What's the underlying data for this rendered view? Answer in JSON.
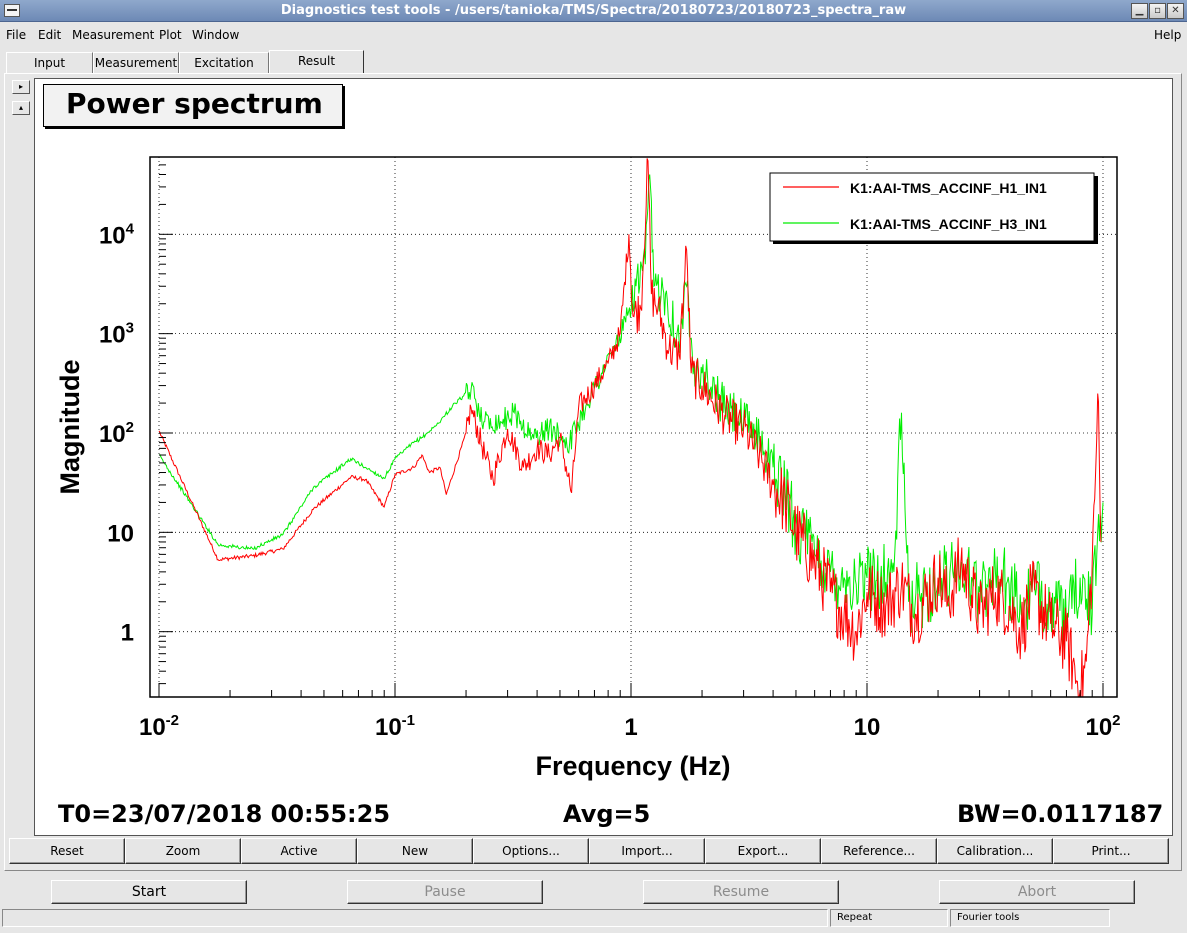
{
  "window": {
    "title": "Diagnostics test tools - /users/tanioka/TMS/Spectra/20180723/20180723_spectra_raw",
    "minimize_glyph": "▁",
    "maximize_glyph": "▫",
    "close_glyph": "✕"
  },
  "menu": [
    "File",
    "Edit",
    "Measurement",
    "Plot",
    "Window"
  ],
  "menu_help": "Help",
  "tabs": [
    "Input",
    "Measurement",
    "Excitation",
    "Result"
  ],
  "active_tab": "Result",
  "side_buttons": {
    "right_glyph": "▸",
    "up_glyph": "▴"
  },
  "plot_title": "Power spectrum",
  "footer": {
    "t0": "T0=23/07/2018 00:55:25",
    "avg": "Avg=5",
    "bw": "BW=0.0117187"
  },
  "graph_buttons": [
    "Reset",
    "Zoom",
    "Active",
    "New",
    "Options...",
    "Import...",
    "Export...",
    "Reference...",
    "Calibration...",
    "Print..."
  ],
  "controls": [
    {
      "label": "Start",
      "enabled": true
    },
    {
      "label": "Pause",
      "enabled": false
    },
    {
      "label": "Resume",
      "enabled": false
    },
    {
      "label": "Abort",
      "enabled": false
    }
  ],
  "status": {
    "repeat": "Repeat",
    "mode": "Fourier tools"
  },
  "chart_data": {
    "type": "line",
    "xscale": "log",
    "yscale": "log",
    "xlim": [
      0.01,
      100
    ],
    "ylim": [
      0.22,
      60000
    ],
    "xlabel": "Frequency (Hz)",
    "ylabel": "Magnitude",
    "grid": true,
    "legend_position": "top-right",
    "x_ticks": [
      {
        "value": 0.01,
        "base": "10",
        "exp": "-2"
      },
      {
        "value": 0.1,
        "base": "10",
        "exp": "-1"
      },
      {
        "value": 1,
        "base": "1",
        "exp": ""
      },
      {
        "value": 10,
        "base": "10",
        "exp": ""
      },
      {
        "value": 100,
        "base": "10",
        "exp": "2"
      }
    ],
    "y_ticks": [
      {
        "value": 1,
        "base": "1",
        "exp": ""
      },
      {
        "value": 10,
        "base": "10",
        "exp": ""
      },
      {
        "value": 100,
        "base": "10",
        "exp": "2"
      },
      {
        "value": 1000,
        "base": "10",
        "exp": "3"
      },
      {
        "value": 10000,
        "base": "10",
        "exp": "4"
      }
    ],
    "series": [
      {
        "name": "K1:AAI-TMS_ACCINF_H1_IN1",
        "color": "#ff0000",
        "x": [
          0.01,
          0.0178,
          0.025,
          0.0335,
          0.045,
          0.065,
          0.075,
          0.09,
          0.1,
          0.12,
          0.13,
          0.14,
          0.155,
          0.165,
          0.2,
          0.21,
          0.24,
          0.26,
          0.3,
          0.35,
          0.4,
          0.45,
          0.5,
          0.56,
          0.6,
          0.7,
          0.8,
          0.9,
          0.98,
          1.02,
          1.1,
          1.18,
          1.22,
          1.3,
          1.45,
          1.6,
          1.72,
          1.8,
          2.0,
          2.5,
          3.0,
          3.5,
          4.0,
          4.5,
          5.0,
          6.0,
          7.0,
          8.0,
          9.0,
          10.0,
          12.0,
          14.0,
          16.0,
          20.0,
          22.0,
          25.0,
          30.0,
          35.0,
          40.0,
          45.0,
          50.0,
          60.0,
          70.0,
          80.0,
          85.0,
          90.0,
          93.0,
          95.0,
          98.0
        ],
        "y": [
          105,
          5.3,
          5.8,
          6.8,
          17,
          36,
          34,
          18,
          38,
          45,
          60,
          40,
          45,
          24,
          100,
          180,
          60,
          35,
          110,
          45,
          70,
          60,
          90,
          25,
          180,
          300,
          500,
          1000,
          10000,
          1500,
          1800,
          55000,
          2500,
          1800,
          700,
          600,
          7000,
          400,
          300,
          150,
          110,
          60,
          30,
          20,
          10,
          5,
          2.5,
          1.5,
          1.0,
          2.5,
          1.8,
          3.0,
          1.5,
          3.5,
          2.0,
          5.0,
          1.5,
          2.5,
          1.8,
          1.0,
          2.5,
          1.2,
          0.8,
          0.25,
          0.5,
          5.0,
          40,
          250,
          8
        ]
      },
      {
        "name": "K1:AAI-TMS_ACCINF_H3_IN1",
        "color": "#00ee00",
        "x": [
          0.01,
          0.0178,
          0.025,
          0.0335,
          0.045,
          0.065,
          0.075,
          0.09,
          0.1,
          0.12,
          0.13,
          0.15,
          0.18,
          0.21,
          0.24,
          0.28,
          0.32,
          0.38,
          0.45,
          0.55,
          0.65,
          0.75,
          0.85,
          0.95,
          1.05,
          1.15,
          1.2,
          1.25,
          1.4,
          1.6,
          1.72,
          1.85,
          2.0,
          2.5,
          3.0,
          3.5,
          4.0,
          4.5,
          5.0,
          6.0,
          7.0,
          8.0,
          9.0,
          10.0,
          13.0,
          14.0,
          15.0,
          20.0,
          25.0,
          30.0,
          35.0,
          40.0,
          45.0,
          50.0,
          60.0,
          70.0,
          80.0,
          90.0,
          95.0,
          100.0
        ],
        "y": [
          60,
          7.5,
          6.8,
          9.5,
          28,
          55,
          45,
          35,
          55,
          80,
          90,
          120,
          200,
          270,
          130,
          130,
          160,
          90,
          110,
          80,
          200,
          400,
          700,
          1300,
          3000,
          5000,
          40000,
          3000,
          2500,
          800,
          3000,
          500,
          400,
          180,
          130,
          90,
          45,
          25,
          12,
          6,
          4.0,
          3.5,
          3.0,
          3.5,
          4.0,
          160,
          2.0,
          3.0,
          5.0,
          2.5,
          4.0,
          3.0,
          1.5,
          2.5,
          2.0,
          1.2,
          3.5,
          1.5,
          10,
          20
        ]
      }
    ]
  }
}
